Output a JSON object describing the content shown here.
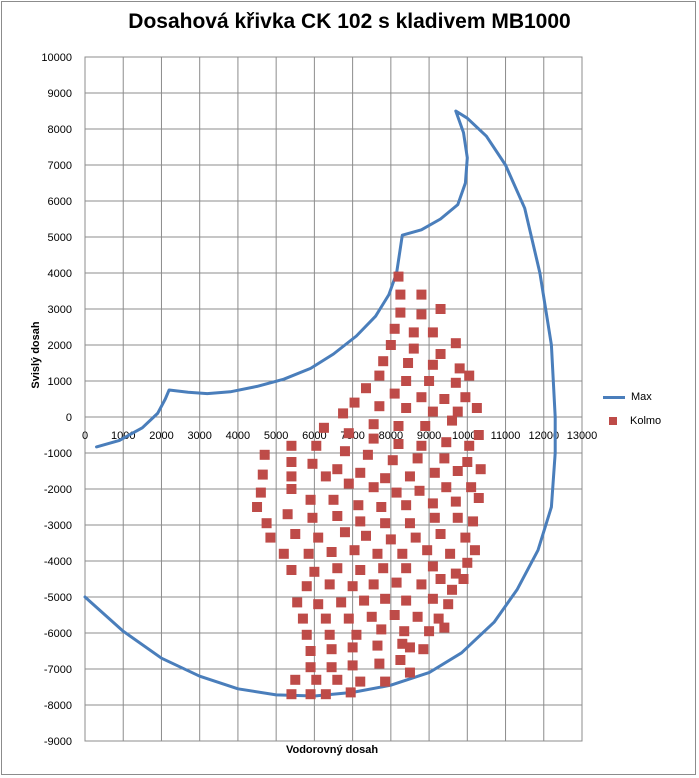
{
  "chart_data": {
    "type": "scatter",
    "title": "Dosahová křivka CK 102 s kladivem MB1000",
    "xlabel": "Vodorovný dosah",
    "ylabel": "Svislý dosah",
    "xlim": [
      0,
      13000
    ],
    "ylim": [
      -9000,
      10000
    ],
    "x_ticks": [
      "0",
      "1000",
      "2000",
      "3000",
      "4000",
      "5000",
      "6000",
      "7000",
      "8000",
      "9000",
      "10000",
      "11000",
      "12000",
      "13000"
    ],
    "y_ticks": [
      "10000",
      "9000",
      "8000",
      "7000",
      "6000",
      "5000",
      "4000",
      "3000",
      "2000",
      "1000",
      "0",
      "-1000",
      "-2000",
      "-3000",
      "-4000",
      "-5000",
      "-6000",
      "-7000",
      "-8000",
      "-9000"
    ],
    "grid": true,
    "legend_position": "right",
    "series": [
      {
        "name": "Max",
        "kind": "line",
        "color": "#4a7ebb",
        "points": [
          [
            300,
            -830
          ],
          [
            900,
            -650
          ],
          [
            1500,
            -300
          ],
          [
            1900,
            100
          ],
          [
            2100,
            500
          ],
          [
            2200,
            750
          ],
          [
            2700,
            690
          ],
          [
            3200,
            650
          ],
          [
            3800,
            700
          ],
          [
            4500,
            850
          ],
          [
            5200,
            1050
          ],
          [
            5900,
            1350
          ],
          [
            6500,
            1750
          ],
          [
            7100,
            2250
          ],
          [
            7600,
            2800
          ],
          [
            7950,
            3400
          ],
          [
            8150,
            4000
          ],
          [
            8300,
            5050
          ],
          [
            8800,
            5200
          ],
          [
            9300,
            5500
          ],
          [
            9750,
            5900
          ],
          [
            9950,
            6500
          ],
          [
            10000,
            7200
          ],
          [
            9900,
            7900
          ],
          [
            9700,
            8500
          ],
          [
            10000,
            8300
          ],
          [
            10500,
            7800
          ],
          [
            11000,
            7000
          ],
          [
            11500,
            5800
          ],
          [
            11900,
            4000
          ],
          [
            12200,
            2000
          ],
          [
            12300,
            0
          ],
          [
            12300,
            -1000
          ],
          [
            12200,
            -2500
          ],
          [
            11850,
            -3700
          ],
          [
            11300,
            -4800
          ],
          [
            10700,
            -5700
          ],
          [
            10100,
            -6300
          ],
          [
            9850,
            -6550
          ],
          [
            9000,
            -7100
          ],
          [
            8000,
            -7450
          ],
          [
            7000,
            -7650
          ],
          [
            6000,
            -7750
          ],
          [
            5000,
            -7720
          ],
          [
            4000,
            -7550
          ],
          [
            3000,
            -7200
          ],
          [
            2000,
            -6700
          ],
          [
            1000,
            -5950
          ],
          [
            0,
            -5000
          ]
        ]
      },
      {
        "name": "Kolmo",
        "kind": "scatter",
        "color": "#be4b48",
        "points": [
          [
            8200,
            3900
          ],
          [
            8800,
            3400
          ],
          [
            8250,
            3400
          ],
          [
            9300,
            3000
          ],
          [
            8250,
            2900
          ],
          [
            8800,
            2850
          ],
          [
            8100,
            2450
          ],
          [
            8600,
            2350
          ],
          [
            9100,
            2350
          ],
          [
            9700,
            2050
          ],
          [
            8000,
            2000
          ],
          [
            8600,
            1900
          ],
          [
            9300,
            1750
          ],
          [
            7800,
            1550
          ],
          [
            8450,
            1500
          ],
          [
            9100,
            1450
          ],
          [
            9800,
            1350
          ],
          [
            7700,
            1150
          ],
          [
            8400,
            1000
          ],
          [
            9000,
            1000
          ],
          [
            9700,
            950
          ],
          [
            10050,
            1150
          ],
          [
            7350,
            800
          ],
          [
            8100,
            650
          ],
          [
            8800,
            550
          ],
          [
            9400,
            500
          ],
          [
            9950,
            550
          ],
          [
            7050,
            400
          ],
          [
            7700,
            300
          ],
          [
            8400,
            250
          ],
          [
            9100,
            150
          ],
          [
            9750,
            150
          ],
          [
            10250,
            250
          ],
          [
            6750,
            100
          ],
          [
            7550,
            -200
          ],
          [
            8200,
            -250
          ],
          [
            8900,
            -250
          ],
          [
            9600,
            -100
          ],
          [
            10300,
            -500
          ],
          [
            6250,
            -300
          ],
          [
            6900,
            -450
          ],
          [
            7550,
            -600
          ],
          [
            8200,
            -750
          ],
          [
            8800,
            -800
          ],
          [
            9450,
            -700
          ],
          [
            10050,
            -800
          ],
          [
            5400,
            -800
          ],
          [
            6050,
            -800
          ],
          [
            6800,
            -950
          ],
          [
            7400,
            -1050
          ],
          [
            8050,
            -1200
          ],
          [
            8700,
            -1150
          ],
          [
            9400,
            -1150
          ],
          [
            10000,
            -1250
          ],
          [
            4700,
            -1050
          ],
          [
            5400,
            -1250
          ],
          [
            5950,
            -1300
          ],
          [
            6600,
            -1450
          ],
          [
            7200,
            -1550
          ],
          [
            7850,
            -1700
          ],
          [
            8500,
            -1650
          ],
          [
            9150,
            -1550
          ],
          [
            9750,
            -1500
          ],
          [
            10350,
            -1450
          ],
          [
            4650,
            -1600
          ],
          [
            5400,
            -1650
          ],
          [
            6300,
            -1650
          ],
          [
            6900,
            -1850
          ],
          [
            7550,
            -1950
          ],
          [
            8150,
            -2100
          ],
          [
            8750,
            -2050
          ],
          [
            9450,
            -1950
          ],
          [
            10100,
            -1950
          ],
          [
            4600,
            -2100
          ],
          [
            5400,
            -2000
          ],
          [
            5900,
            -2300
          ],
          [
            6500,
            -2300
          ],
          [
            7150,
            -2450
          ],
          [
            7750,
            -2500
          ],
          [
            8400,
            -2450
          ],
          [
            9100,
            -2400
          ],
          [
            9700,
            -2350
          ],
          [
            10300,
            -2250
          ],
          [
            4500,
            -2500
          ],
          [
            4750,
            -2950
          ],
          [
            5300,
            -2700
          ],
          [
            5950,
            -2800
          ],
          [
            6600,
            -2750
          ],
          [
            7200,
            -2900
          ],
          [
            7850,
            -2950
          ],
          [
            8500,
            -2950
          ],
          [
            9150,
            -2800
          ],
          [
            9750,
            -2800
          ],
          [
            10150,
            -2900
          ],
          [
            4850,
            -3350
          ],
          [
            5500,
            -3250
          ],
          [
            6100,
            -3350
          ],
          [
            6800,
            -3200
          ],
          [
            7350,
            -3300
          ],
          [
            8000,
            -3400
          ],
          [
            8650,
            -3350
          ],
          [
            9300,
            -3250
          ],
          [
            9950,
            -3350
          ],
          [
            10200,
            -3700
          ],
          [
            5200,
            -3800
          ],
          [
            5850,
            -3800
          ],
          [
            6450,
            -3750
          ],
          [
            7050,
            -3700
          ],
          [
            7650,
            -3800
          ],
          [
            8300,
            -3800
          ],
          [
            8950,
            -3700
          ],
          [
            9550,
            -3800
          ],
          [
            10000,
            -4050
          ],
          [
            5400,
            -4250
          ],
          [
            6000,
            -4300
          ],
          [
            6600,
            -4200
          ],
          [
            7200,
            -4250
          ],
          [
            7800,
            -4200
          ],
          [
            8400,
            -4200
          ],
          [
            9100,
            -4150
          ],
          [
            9700,
            -4350
          ],
          [
            9900,
            -4500
          ],
          [
            5800,
            -4700
          ],
          [
            6400,
            -4650
          ],
          [
            7000,
            -4700
          ],
          [
            7550,
            -4650
          ],
          [
            8150,
            -4600
          ],
          [
            8800,
            -4650
          ],
          [
            9300,
            -4500
          ],
          [
            9600,
            -4800
          ],
          [
            5550,
            -5150
          ],
          [
            6100,
            -5200
          ],
          [
            6700,
            -5150
          ],
          [
            7300,
            -5100
          ],
          [
            7850,
            -5050
          ],
          [
            8400,
            -5100
          ],
          [
            9100,
            -5050
          ],
          [
            9500,
            -5200
          ],
          [
            5700,
            -5600
          ],
          [
            6300,
            -5600
          ],
          [
            6900,
            -5600
          ],
          [
            7500,
            -5550
          ],
          [
            8100,
            -5500
          ],
          [
            8700,
            -5550
          ],
          [
            9250,
            -5600
          ],
          [
            9400,
            -5850
          ],
          [
            5800,
            -6050
          ],
          [
            6400,
            -6050
          ],
          [
            7100,
            -6050
          ],
          [
            7750,
            -5900
          ],
          [
            8350,
            -5950
          ],
          [
            9000,
            -5950
          ],
          [
            5900,
            -6500
          ],
          [
            6450,
            -6450
          ],
          [
            7000,
            -6400
          ],
          [
            7650,
            -6350
          ],
          [
            8300,
            -6300
          ],
          [
            8850,
            -6450
          ],
          [
            8500,
            -6400
          ],
          [
            5900,
            -6950
          ],
          [
            6450,
            -6950
          ],
          [
            7000,
            -6900
          ],
          [
            7700,
            -6850
          ],
          [
            8250,
            -6750
          ],
          [
            8500,
            -7100
          ],
          [
            5500,
            -7300
          ],
          [
            6050,
            -7300
          ],
          [
            6600,
            -7300
          ],
          [
            7200,
            -7350
          ],
          [
            7850,
            -7350
          ],
          [
            5400,
            -7700
          ],
          [
            5900,
            -7700
          ],
          [
            6300,
            -7700
          ],
          [
            6950,
            -7650
          ]
        ]
      }
    ]
  }
}
